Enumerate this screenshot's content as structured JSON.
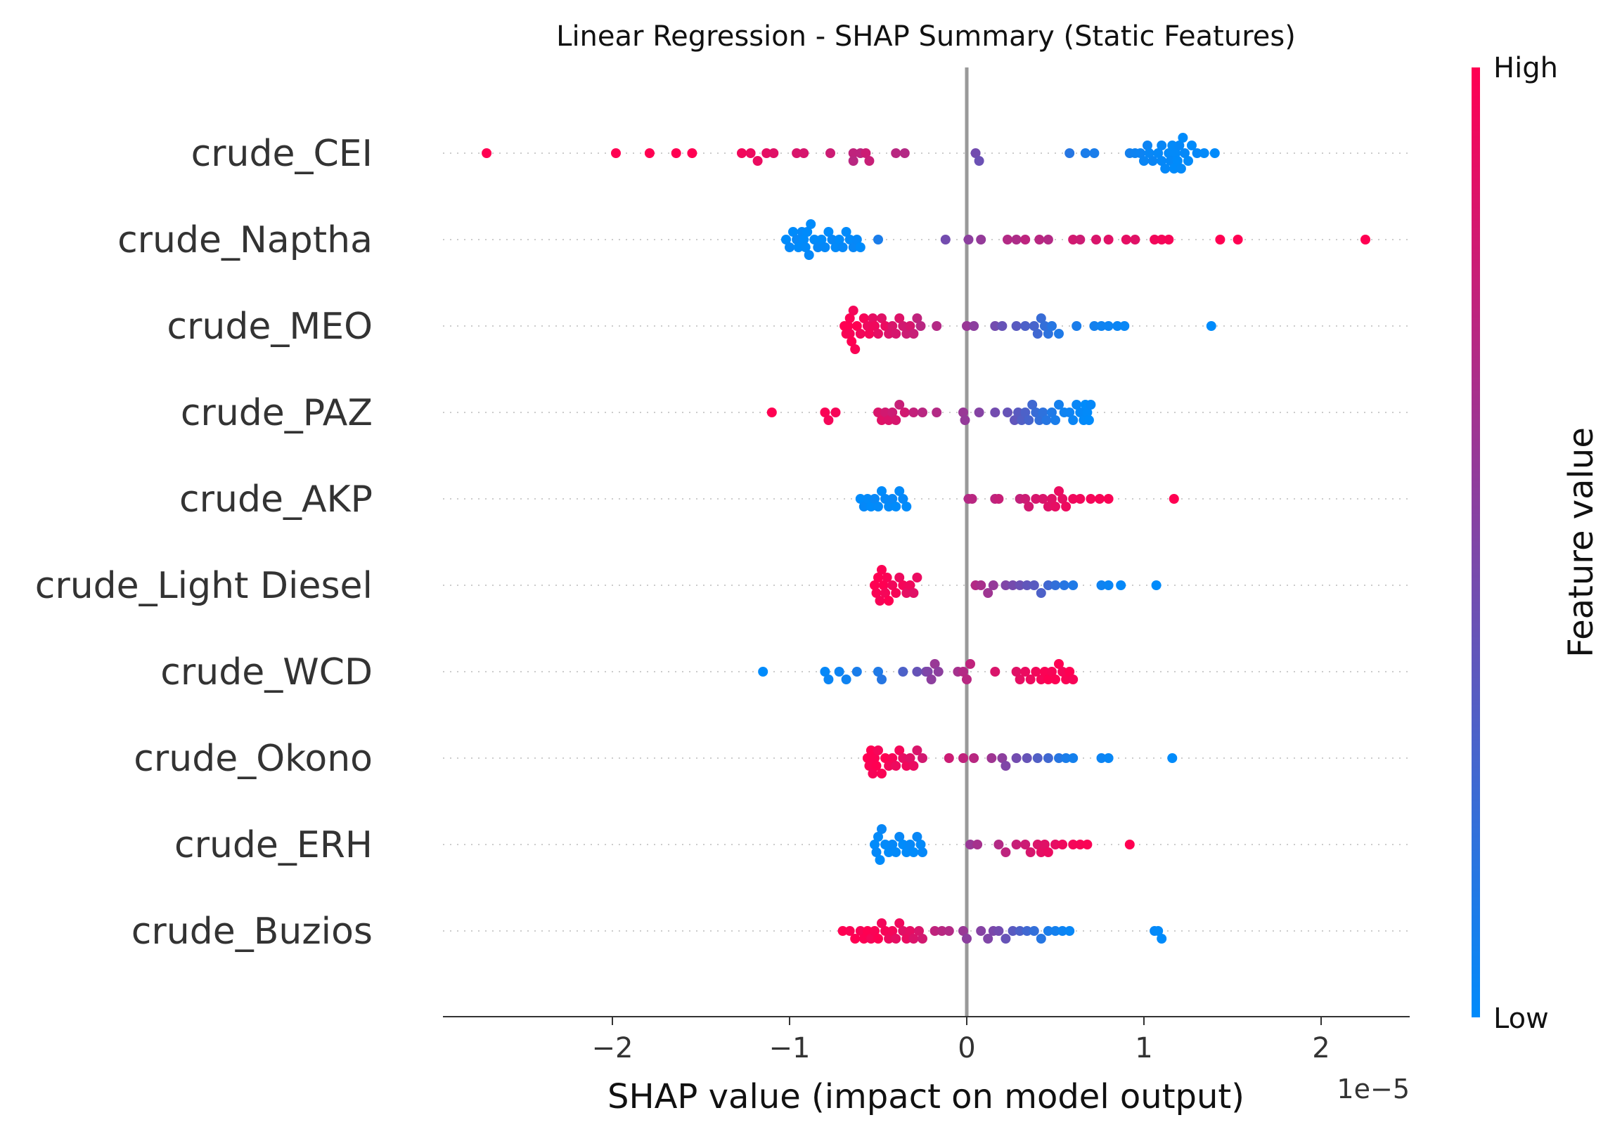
{
  "chart_data": {
    "type": "scatter",
    "title": "Linear Regression - SHAP Summary (Static Features)",
    "xlabel": "SHAP value (impact on model output)",
    "x_offset_label": "1e−5",
    "xlim": [
      -2.95,
      2.5
    ],
    "x_ticks": [
      -2,
      -1,
      0,
      1,
      2
    ],
    "x_tick_labels": [
      "−2",
      "−1",
      "0",
      "1",
      "2"
    ],
    "colorbar": {
      "label": "Feature value",
      "high_label": "High",
      "low_label": "Low",
      "low_color": "#008bfb",
      "high_color": "#ff0052"
    },
    "features": [
      {
        "name": "crude_CEI",
        "x": [
          -2.71,
          -1.98,
          -1.79,
          -1.64,
          -1.55,
          -1.27,
          -1.22,
          -1.18,
          -1.13,
          -1.09,
          -0.96,
          -0.92,
          -0.77,
          -0.64,
          -0.64,
          -0.6,
          -0.57,
          -0.55,
          -0.4,
          -0.35,
          0.05,
          0.07,
          0.58,
          0.67,
          0.72,
          0.92,
          0.95,
          0.98,
          1.0,
          1.02,
          1.03,
          1.05,
          1.08,
          1.1,
          1.1,
          1.12,
          1.14,
          1.15,
          1.16,
          1.17,
          1.18,
          1.19,
          1.2,
          1.21,
          1.22,
          1.23,
          1.25,
          1.27,
          1.3,
          1.34,
          1.4
        ],
        "c": [
          1.0,
          1.0,
          1.0,
          1.0,
          1.0,
          0.95,
          0.93,
          0.92,
          0.9,
          0.88,
          0.85,
          0.84,
          0.8,
          0.75,
          0.72,
          0.74,
          0.8,
          0.78,
          0.72,
          0.7,
          0.45,
          0.42,
          0.15,
          0.1,
          0.1,
          0.08,
          0.06,
          0.05,
          0.04,
          0.05,
          0.03,
          0.04,
          0.02,
          0.02,
          0.03,
          0.02,
          0.01,
          0.02,
          0.01,
          0.0,
          0.01,
          0.0,
          0.02,
          0.01,
          0.0,
          0.02,
          0.01,
          0.0,
          0.02,
          0.01,
          0.0
        ]
      },
      {
        "name": "crude_Naptha ",
        "x": [
          -1.02,
          -1.0,
          -0.98,
          -0.96,
          -0.95,
          -0.93,
          -0.92,
          -0.91,
          -0.9,
          -0.89,
          -0.88,
          -0.86,
          -0.84,
          -0.82,
          -0.8,
          -0.78,
          -0.76,
          -0.74,
          -0.72,
          -0.7,
          -0.68,
          -0.66,
          -0.64,
          -0.62,
          -0.6,
          -0.5,
          -0.12,
          0.01,
          0.08,
          0.23,
          0.28,
          0.33,
          0.41,
          0.46,
          0.6,
          0.64,
          0.73,
          0.8,
          0.9,
          0.95,
          1.06,
          1.1,
          1.14,
          1.43,
          1.53,
          2.25
        ],
        "c": [
          0.0,
          0.02,
          0.0,
          0.03,
          0.0,
          0.02,
          0.0,
          0.01,
          0.0,
          0.02,
          0.0,
          0.01,
          0.03,
          0.0,
          0.02,
          0.0,
          0.03,
          0.01,
          0.0,
          0.02,
          0.0,
          0.01,
          0.03,
          0.02,
          0.0,
          0.1,
          0.45,
          0.55,
          0.58,
          0.7,
          0.68,
          0.74,
          0.72,
          0.7,
          0.82,
          0.8,
          0.85,
          0.88,
          0.9,
          0.88,
          0.95,
          0.96,
          0.97,
          1.0,
          1.0,
          1.0
        ]
      },
      {
        "name": "crude_MEO",
        "x": [
          -0.69,
          -0.68,
          -0.67,
          -0.66,
          -0.66,
          -0.65,
          -0.64,
          -0.63,
          -0.62,
          -0.6,
          -0.58,
          -0.56,
          -0.55,
          -0.53,
          -0.52,
          -0.5,
          -0.48,
          -0.46,
          -0.44,
          -0.42,
          -0.4,
          -0.38,
          -0.36,
          -0.34,
          -0.32,
          -0.3,
          -0.28,
          -0.26,
          -0.17,
          0.0,
          0.04,
          0.16,
          0.2,
          0.28,
          0.33,
          0.38,
          0.4,
          0.42,
          0.44,
          0.46,
          0.48,
          0.52,
          0.62,
          0.72,
          0.76,
          0.8,
          0.85,
          0.89,
          1.38
        ],
        "c": [
          1.0,
          0.98,
          1.0,
          0.97,
          0.99,
          1.0,
          0.96,
          0.98,
          1.0,
          0.95,
          0.97,
          0.93,
          0.96,
          0.9,
          0.94,
          0.9,
          0.88,
          0.92,
          0.86,
          0.85,
          0.84,
          0.87,
          0.82,
          0.8,
          0.84,
          0.78,
          0.75,
          0.72,
          0.7,
          0.6,
          0.55,
          0.45,
          0.4,
          0.35,
          0.3,
          0.28,
          0.25,
          0.22,
          0.2,
          0.18,
          0.15,
          0.12,
          0.1,
          0.08,
          0.06,
          0.05,
          0.04,
          0.03,
          0.0
        ]
      },
      {
        "name": "crude_PAZ",
        "x": [
          -1.1,
          -0.8,
          -0.78,
          -0.74,
          -0.5,
          -0.48,
          -0.46,
          -0.44,
          -0.42,
          -0.4,
          -0.38,
          -0.35,
          -0.3,
          -0.25,
          -0.17,
          -0.02,
          -0.01,
          0.07,
          0.16,
          0.23,
          0.27,
          0.29,
          0.31,
          0.33,
          0.35,
          0.37,
          0.39,
          0.41,
          0.43,
          0.45,
          0.48,
          0.5,
          0.52,
          0.55,
          0.58,
          0.6,
          0.62,
          0.64,
          0.66,
          0.67,
          0.68,
          0.69,
          0.7
        ],
        "c": [
          1.0,
          0.98,
          0.96,
          0.97,
          0.85,
          0.88,
          0.82,
          0.86,
          0.8,
          0.84,
          0.78,
          0.82,
          0.76,
          0.72,
          0.7,
          0.6,
          0.58,
          0.52,
          0.45,
          0.4,
          0.38,
          0.35,
          0.32,
          0.3,
          0.28,
          0.25,
          0.22,
          0.2,
          0.18,
          0.15,
          0.12,
          0.1,
          0.08,
          0.06,
          0.05,
          0.04,
          0.03,
          0.02,
          0.01,
          0.0,
          0.01,
          0.0,
          0.02
        ]
      },
      {
        "name": "crude_AKP",
        "x": [
          -0.6,
          -0.58,
          -0.56,
          -0.54,
          -0.52,
          -0.5,
          -0.48,
          -0.46,
          -0.44,
          -0.42,
          -0.4,
          -0.38,
          -0.36,
          -0.34,
          0.01,
          0.03,
          0.16,
          0.18,
          0.3,
          0.33,
          0.35,
          0.39,
          0.43,
          0.46,
          0.48,
          0.5,
          0.52,
          0.54,
          0.56,
          0.6,
          0.64,
          0.7,
          0.75,
          0.8,
          1.17
        ],
        "c": [
          0.0,
          0.02,
          0.01,
          0.0,
          0.03,
          0.01,
          0.0,
          0.02,
          0.01,
          0.03,
          0.0,
          0.01,
          0.02,
          0.0,
          0.7,
          0.72,
          0.74,
          0.78,
          0.76,
          0.8,
          0.82,
          0.84,
          0.85,
          0.87,
          0.88,
          0.9,
          0.92,
          0.9,
          0.93,
          0.94,
          0.95,
          0.96,
          0.97,
          0.98,
          1.0
        ]
      },
      {
        "name": "crude_Light Diesel",
        "x": [
          -0.52,
          -0.51,
          -0.5,
          -0.49,
          -0.48,
          -0.47,
          -0.46,
          -0.45,
          -0.44,
          -0.42,
          -0.4,
          -0.38,
          -0.36,
          -0.34,
          -0.32,
          -0.3,
          -0.28,
          0.05,
          0.08,
          0.12,
          0.15,
          0.22,
          0.26,
          0.3,
          0.34,
          0.38,
          0.42,
          0.46,
          0.5,
          0.55,
          0.6,
          0.76,
          0.8,
          0.87,
          1.07
        ],
        "c": [
          1.0,
          0.98,
          1.0,
          0.97,
          0.99,
          1.0,
          0.96,
          0.98,
          1.0,
          0.95,
          0.97,
          0.93,
          0.96,
          0.9,
          0.94,
          0.88,
          0.92,
          0.7,
          0.66,
          0.62,
          0.58,
          0.5,
          0.46,
          0.42,
          0.38,
          0.35,
          0.3,
          0.25,
          0.2,
          0.15,
          0.12,
          0.06,
          0.04,
          0.02,
          0.0
        ]
      },
      {
        "name": "crude_WCD",
        "x": [
          -1.15,
          -0.8,
          -0.78,
          -0.72,
          -0.68,
          -0.62,
          -0.5,
          -0.48,
          -0.36,
          -0.28,
          -0.23,
          -0.22,
          -0.2,
          -0.18,
          -0.16,
          -0.05,
          -0.02,
          0.0,
          0.02,
          0.16,
          0.28,
          0.3,
          0.33,
          0.36,
          0.39,
          0.42,
          0.44,
          0.46,
          0.48,
          0.5,
          0.52,
          0.54,
          0.56,
          0.58,
          0.6
        ],
        "c": [
          0.0,
          0.02,
          0.04,
          0.05,
          0.06,
          0.1,
          0.12,
          0.15,
          0.3,
          0.4,
          0.45,
          0.5,
          0.55,
          0.6,
          0.55,
          0.65,
          0.7,
          0.72,
          0.75,
          0.85,
          0.88,
          0.9,
          0.92,
          0.93,
          0.95,
          0.96,
          0.98,
          1.0,
          0.97,
          0.99,
          1.0,
          0.96,
          0.98,
          1.0,
          0.97
        ]
      },
      {
        "name": "crude_Okono",
        "x": [
          -0.56,
          -0.55,
          -0.54,
          -0.53,
          -0.52,
          -0.51,
          -0.5,
          -0.48,
          -0.46,
          -0.44,
          -0.42,
          -0.4,
          -0.38,
          -0.36,
          -0.34,
          -0.32,
          -0.3,
          -0.28,
          -0.25,
          -0.1,
          -0.02,
          0.04,
          0.14,
          0.2,
          0.22,
          0.28,
          0.34,
          0.4,
          0.46,
          0.52,
          0.56,
          0.6,
          0.76,
          0.8,
          1.16
        ],
        "c": [
          1.0,
          0.98,
          1.0,
          0.97,
          0.99,
          1.0,
          0.96,
          0.98,
          1.0,
          0.95,
          0.97,
          0.93,
          0.96,
          0.9,
          0.94,
          0.88,
          0.92,
          0.85,
          0.82,
          0.8,
          0.75,
          0.72,
          0.62,
          0.55,
          0.5,
          0.45,
          0.4,
          0.32,
          0.25,
          0.15,
          0.1,
          0.08,
          0.05,
          0.03,
          0.0
        ]
      },
      {
        "name": "crude_ERH",
        "x": [
          -0.52,
          -0.51,
          -0.5,
          -0.49,
          -0.48,
          -0.46,
          -0.44,
          -0.42,
          -0.4,
          -0.38,
          -0.36,
          -0.34,
          -0.32,
          -0.3,
          -0.28,
          -0.26,
          -0.25,
          0.02,
          0.06,
          0.18,
          0.22,
          0.28,
          0.33,
          0.36,
          0.4,
          0.42,
          0.44,
          0.46,
          0.5,
          0.54,
          0.6,
          0.64,
          0.68,
          0.92
        ],
        "c": [
          0.0,
          0.02,
          0.01,
          0.0,
          0.03,
          0.01,
          0.0,
          0.02,
          0.01,
          0.03,
          0.0,
          0.01,
          0.02,
          0.0,
          0.03,
          0.01,
          0.02,
          0.6,
          0.65,
          0.7,
          0.74,
          0.78,
          0.8,
          0.84,
          0.86,
          0.9,
          0.88,
          0.92,
          0.9,
          0.94,
          0.96,
          0.97,
          0.98,
          1.0
        ]
      },
      {
        "name": "crude_Buzios",
        "x": [
          -0.7,
          -0.66,
          -0.63,
          -0.6,
          -0.58,
          -0.56,
          -0.54,
          -0.52,
          -0.5,
          -0.48,
          -0.46,
          -0.44,
          -0.42,
          -0.4,
          -0.38,
          -0.36,
          -0.34,
          -0.32,
          -0.3,
          -0.27,
          -0.25,
          -0.18,
          -0.14,
          -0.1,
          -0.02,
          0.0,
          0.08,
          0.12,
          0.15,
          0.18,
          0.22,
          0.26,
          0.3,
          0.34,
          0.38,
          0.42,
          0.46,
          0.5,
          0.54,
          0.58,
          1.06,
          1.08,
          1.1
        ],
        "c": [
          1.0,
          0.98,
          1.0,
          0.97,
          0.99,
          1.0,
          0.96,
          0.98,
          1.0,
          0.95,
          0.97,
          0.93,
          0.96,
          0.9,
          0.94,
          0.88,
          0.92,
          0.9,
          0.86,
          0.85,
          0.82,
          0.75,
          0.72,
          0.7,
          0.6,
          0.55,
          0.52,
          0.5,
          0.48,
          0.45,
          0.4,
          0.35,
          0.3,
          0.25,
          0.2,
          0.15,
          0.1,
          0.08,
          0.05,
          0.03,
          0.02,
          0.01,
          0.0
        ]
      }
    ]
  }
}
